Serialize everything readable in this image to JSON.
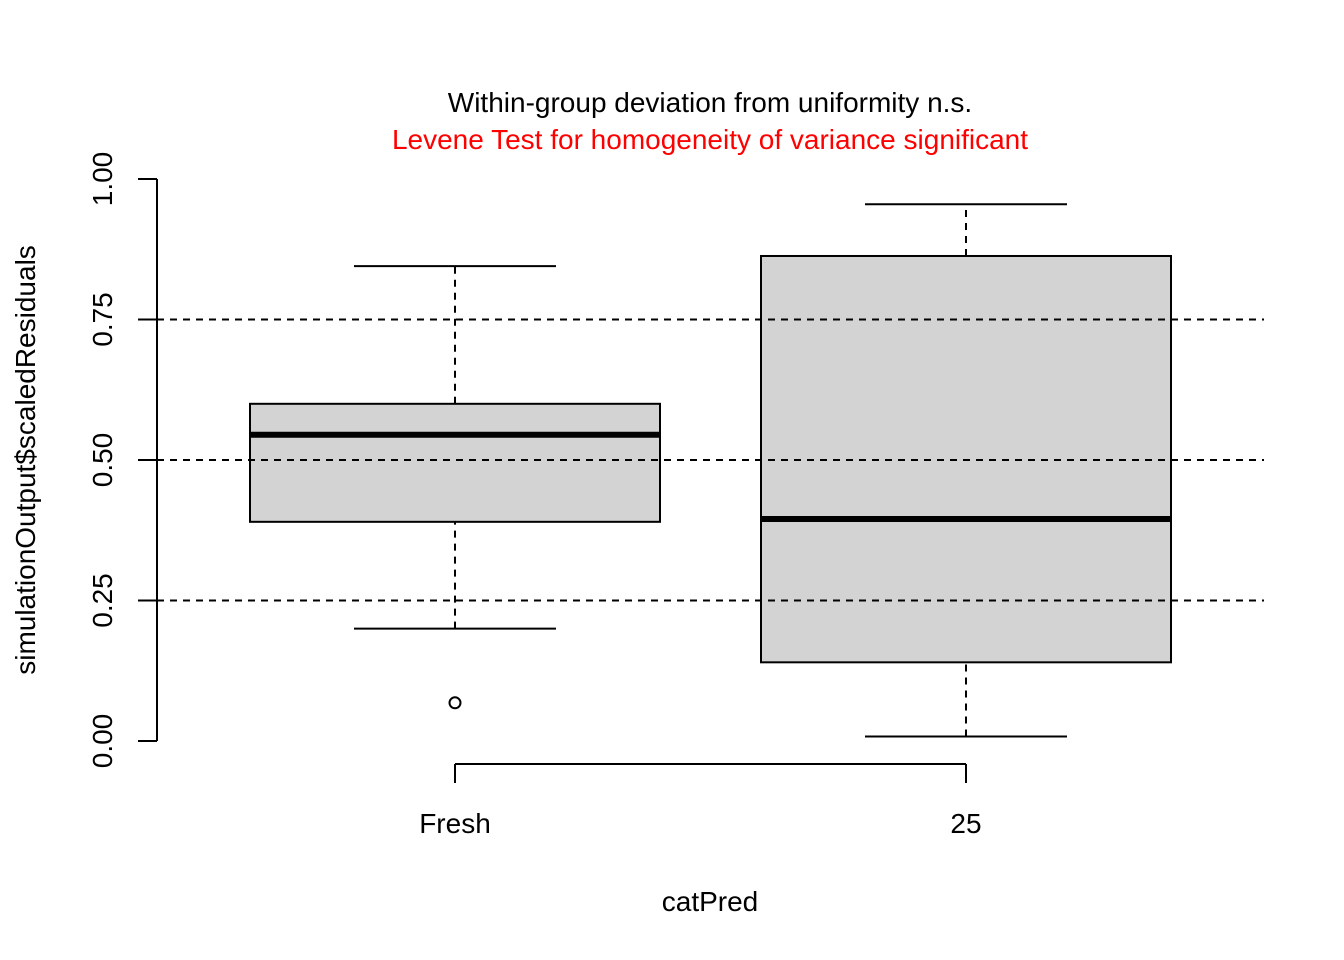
{
  "chart_data": {
    "type": "box",
    "title": "Within-group deviation from uniformity n.s.",
    "subtitle": "Levene Test for homogeneity of variance significant",
    "xlabel": "catPred",
    "ylabel": "simulationOutput$scaledResiduals",
    "ylim": [
      0.0,
      1.0
    ],
    "y_ticks": [
      "0.00",
      "0.25",
      "0.50",
      "0.75",
      "1.00"
    ],
    "reference_lines": [
      0.25,
      0.5,
      0.75
    ],
    "categories": [
      "Fresh",
      "25"
    ],
    "boxes": [
      {
        "category": "Fresh",
        "whisker_low": 0.2,
        "q1": 0.39,
        "median": 0.545,
        "q3": 0.6,
        "whisker_high": 0.845,
        "outliers": [
          0.068
        ]
      },
      {
        "category": "25",
        "whisker_low": 0.008,
        "q1": 0.14,
        "median": 0.395,
        "q3": 0.863,
        "whisker_high": 0.955,
        "outliers": []
      }
    ],
    "grid": false,
    "colors": {
      "box_fill": "#d3d3d3",
      "line": "#000000",
      "subtitle": "#ff0000"
    }
  }
}
